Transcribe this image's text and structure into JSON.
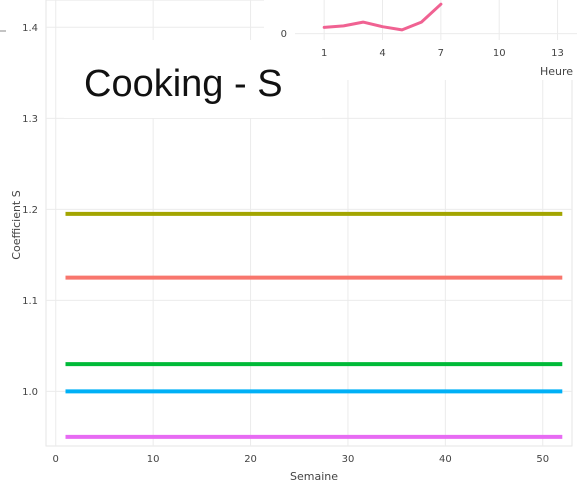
{
  "overlay_text": "Cooking - S",
  "chart_data": [
    {
      "type": "line",
      "title": "",
      "xlabel": "Semaine",
      "ylabel": "Coefficient S",
      "xlim": [
        -1,
        53
      ],
      "ylim": [
        0.94,
        1.43
      ],
      "xticks": [
        "0",
        "10",
        "20",
        "30",
        "40",
        "50"
      ],
      "yticks": [
        "1.0",
        "1.1",
        "1.2",
        "1.3",
        "1.4"
      ],
      "grid": true,
      "series": [
        {
          "color": "#a3a500",
          "x": [
            1,
            52
          ],
          "y": [
            1.195,
            1.195
          ]
        },
        {
          "color": "#f8766d",
          "x": [
            1,
            52
          ],
          "y": [
            1.125,
            1.125
          ]
        },
        {
          "color": "#00ba38",
          "x": [
            1,
            52
          ],
          "y": [
            1.03,
            1.03
          ]
        },
        {
          "color": "#00b0f6",
          "x": [
            1,
            52
          ],
          "y": [
            1.0,
            1.0
          ]
        },
        {
          "color": "#e76bf3",
          "x": [
            1,
            52
          ],
          "y": [
            0.95,
            0.95
          ]
        }
      ]
    },
    {
      "type": "line",
      "title": "",
      "xlabel": "Heure",
      "ylabel": "",
      "xlim": [
        -0.5,
        14
      ],
      "ylim": [
        -0.3,
        1.6
      ],
      "xticks": [
        "1",
        "4",
        "7",
        "10",
        "13"
      ],
      "yticks": [
        "0"
      ],
      "grid": true,
      "series": [
        {
          "color": "#f06292",
          "x": [
            1,
            2,
            3,
            4,
            5,
            6,
            7
          ],
          "y": [
            0.3,
            0.37,
            0.55,
            0.33,
            0.18,
            0.55,
            1.4
          ]
        }
      ]
    }
  ]
}
